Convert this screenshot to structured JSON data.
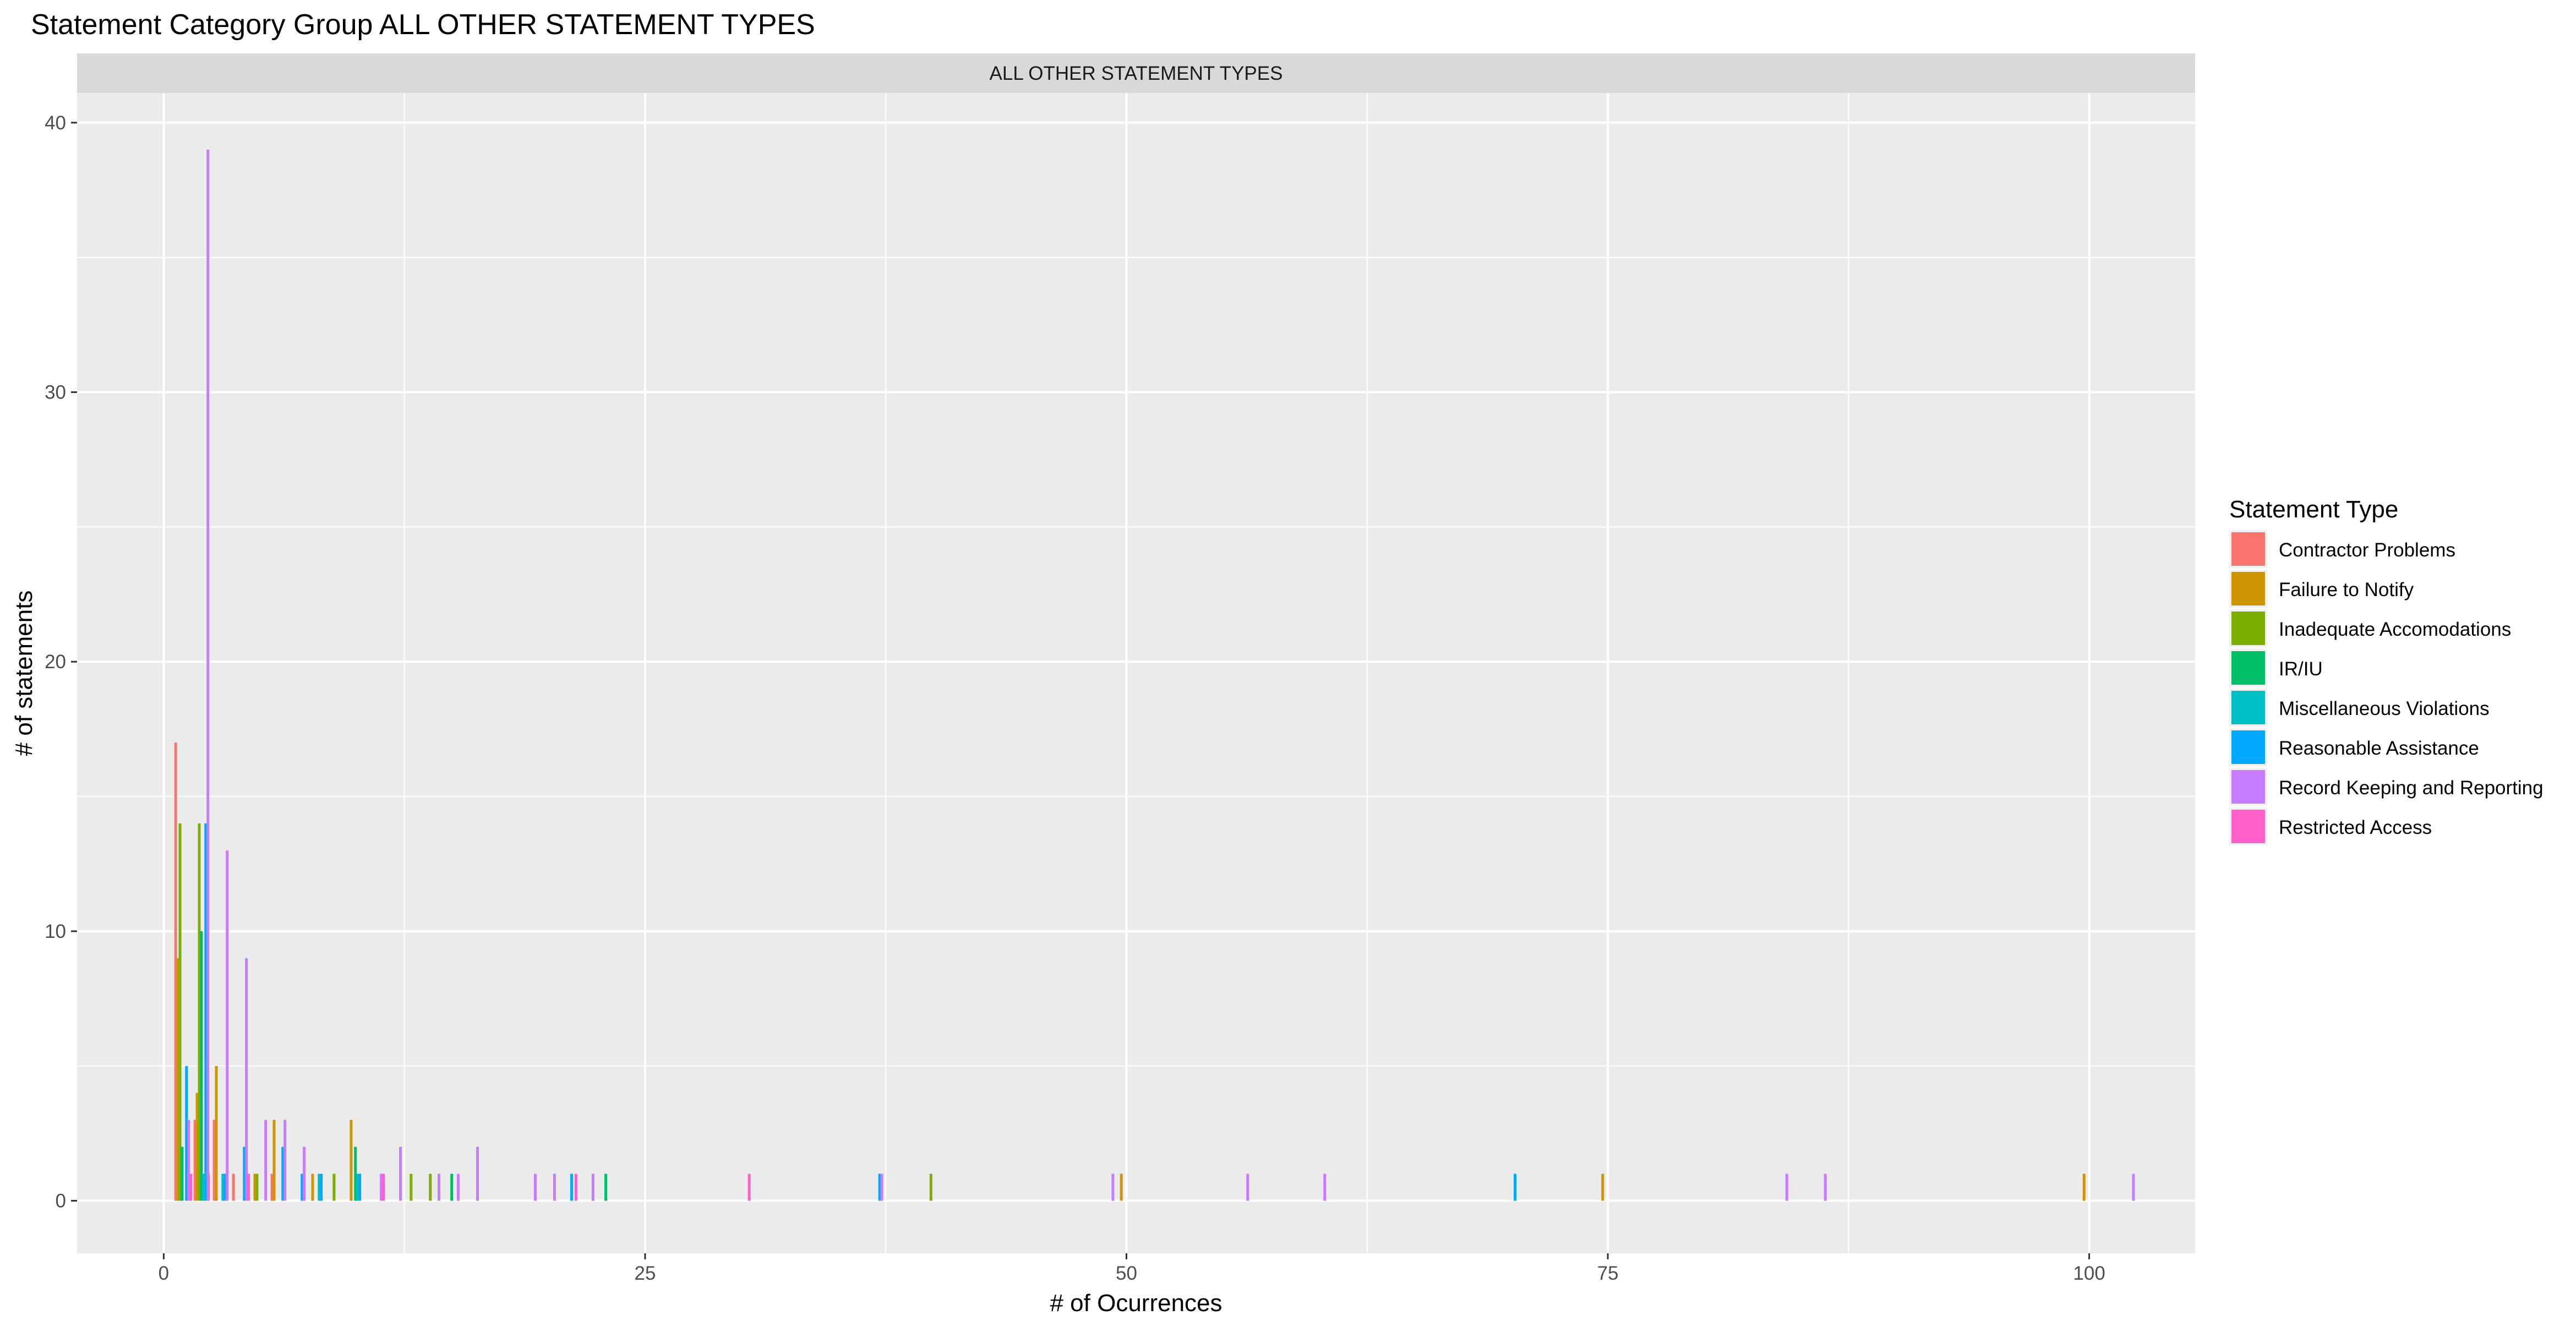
{
  "chart_data": {
    "type": "bar",
    "title": "Statement Category Group ALL OTHER STATEMENT TYPES",
    "facet_label": "ALL OTHER STATEMENT TYPES",
    "xlabel": "# of Ocurrences",
    "ylabel": "# of statements",
    "xlim": [
      -4.5,
      105.5
    ],
    "ylim": [
      -1.95,
      41.1
    ],
    "x_ticks": [
      0,
      25,
      50,
      75,
      100
    ],
    "y_ticks": [
      0,
      10,
      20,
      30,
      40
    ],
    "grid": true,
    "legend_position": "right",
    "legend_title": "Statement Type",
    "series": [
      {
        "name": "Contractor Problems",
        "color": "#F8766D",
        "points": [
          [
            1,
            17
          ],
          [
            2,
            3
          ],
          [
            2.3,
            1
          ],
          [
            2.7,
            1
          ],
          [
            3,
            3
          ],
          [
            4,
            1
          ],
          [
            6,
            1
          ]
        ]
      },
      {
        "name": "Failure to Notify",
        "color": "#CD9600",
        "points": [
          [
            1,
            9
          ],
          [
            2,
            4
          ],
          [
            3,
            5
          ],
          [
            5,
            1
          ],
          [
            6,
            3
          ],
          [
            8,
            1
          ],
          [
            10,
            3
          ],
          [
            50,
            1
          ],
          [
            75,
            1
          ],
          [
            100,
            1
          ]
        ]
      },
      {
        "name": "Inadequate Accomodations",
        "color": "#7CAE00",
        "points": [
          [
            1,
            14
          ],
          [
            2,
            14
          ],
          [
            5,
            1
          ],
          [
            9,
            1
          ],
          [
            13,
            1
          ],
          [
            14,
            1
          ],
          [
            40,
            1
          ]
        ]
      },
      {
        "name": "IR/IU",
        "color": "#00BE67",
        "points": [
          [
            1,
            2
          ],
          [
            2,
            10
          ],
          [
            10,
            2
          ],
          [
            15,
            1
          ],
          [
            23,
            1
          ]
        ]
      },
      {
        "name": "Miscellaneous Violations",
        "color": "#00BFC4",
        "points": [
          [
            2,
            1
          ],
          [
            3,
            1
          ],
          [
            8,
            1
          ],
          [
            10,
            1
          ]
        ]
      },
      {
        "name": "Reasonable Assistance",
        "color": "#00A9FF",
        "points": [
          [
            1,
            5
          ],
          [
            2,
            14
          ],
          [
            3,
            1
          ],
          [
            4,
            2
          ],
          [
            6,
            2
          ],
          [
            7,
            1
          ],
          [
            8,
            1
          ],
          [
            10,
            1
          ],
          [
            21,
            1
          ],
          [
            37,
            1
          ],
          [
            70,
            1
          ]
        ]
      },
      {
        "name": "Record Keeping and Reporting",
        "color": "#C77CFF",
        "points": [
          [
            1,
            3
          ],
          [
            2,
            39
          ],
          [
            3,
            13
          ],
          [
            4,
            9
          ],
          [
            5,
            3
          ],
          [
            6,
            3
          ],
          [
            7,
            2
          ],
          [
            11,
            1
          ],
          [
            12,
            2
          ],
          [
            14,
            1
          ],
          [
            15,
            1
          ],
          [
            16,
            2
          ],
          [
            19,
            1
          ],
          [
            20,
            1
          ],
          [
            22,
            1
          ],
          [
            37,
            1
          ],
          [
            49,
            1
          ],
          [
            56,
            1
          ],
          [
            60,
            1
          ],
          [
            84,
            1
          ],
          [
            86,
            1
          ],
          [
            102,
            1
          ]
        ]
      },
      {
        "name": "Restricted Access",
        "color": "#FF61CC",
        "points": [
          [
            1,
            1
          ],
          [
            4,
            1
          ],
          [
            11,
            1
          ],
          [
            21,
            1
          ],
          [
            30,
            1
          ]
        ]
      }
    ]
  }
}
